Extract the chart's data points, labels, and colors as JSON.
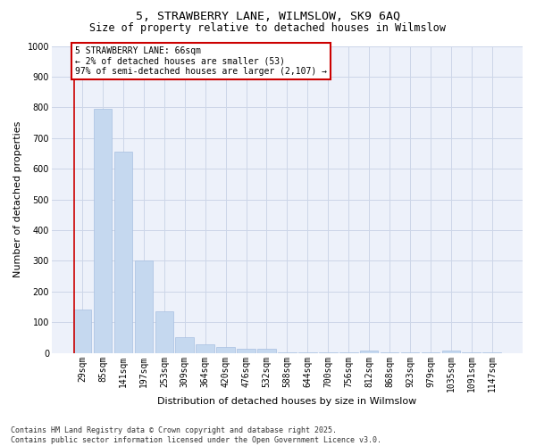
{
  "title_line1": "5, STRAWBERRY LANE, WILMSLOW, SK9 6AQ",
  "title_line2": "Size of property relative to detached houses in Wilmslow",
  "xlabel": "Distribution of detached houses by size in Wilmslow",
  "ylabel": "Number of detached properties",
  "categories": [
    "29sqm",
    "85sqm",
    "141sqm",
    "197sqm",
    "253sqm",
    "309sqm",
    "364sqm",
    "420sqm",
    "476sqm",
    "532sqm",
    "588sqm",
    "644sqm",
    "700sqm",
    "756sqm",
    "812sqm",
    "868sqm",
    "923sqm",
    "979sqm",
    "1035sqm",
    "1091sqm",
    "1147sqm"
  ],
  "values": [
    140,
    795,
    655,
    300,
    135,
    50,
    28,
    18,
    14,
    14,
    3,
    2,
    1,
    1,
    8,
    1,
    1,
    1,
    8,
    1,
    1
  ],
  "bar_color": "#c5d8ef",
  "bar_edge_color": "#a8c0e0",
  "annotation_text": "5 STRAWBERRY LANE: 66sqm\n← 2% of detached houses are smaller (53)\n97% of semi-detached houses are larger (2,107) →",
  "annotation_edge_color": "#cc0000",
  "red_line_color": "#cc0000",
  "ylim": [
    0,
    1000
  ],
  "yticks": [
    0,
    100,
    200,
    300,
    400,
    500,
    600,
    700,
    800,
    900,
    1000
  ],
  "grid_color": "#ccd6e8",
  "background_color": "#edf1fa",
  "footer_line1": "Contains HM Land Registry data © Crown copyright and database right 2025.",
  "footer_line2": "Contains public sector information licensed under the Open Government Licence v3.0.",
  "title_fontsize": 9.5,
  "subtitle_fontsize": 8.5,
  "axis_label_fontsize": 8,
  "tick_fontsize": 7,
  "annotation_fontsize": 7,
  "footer_fontsize": 6
}
